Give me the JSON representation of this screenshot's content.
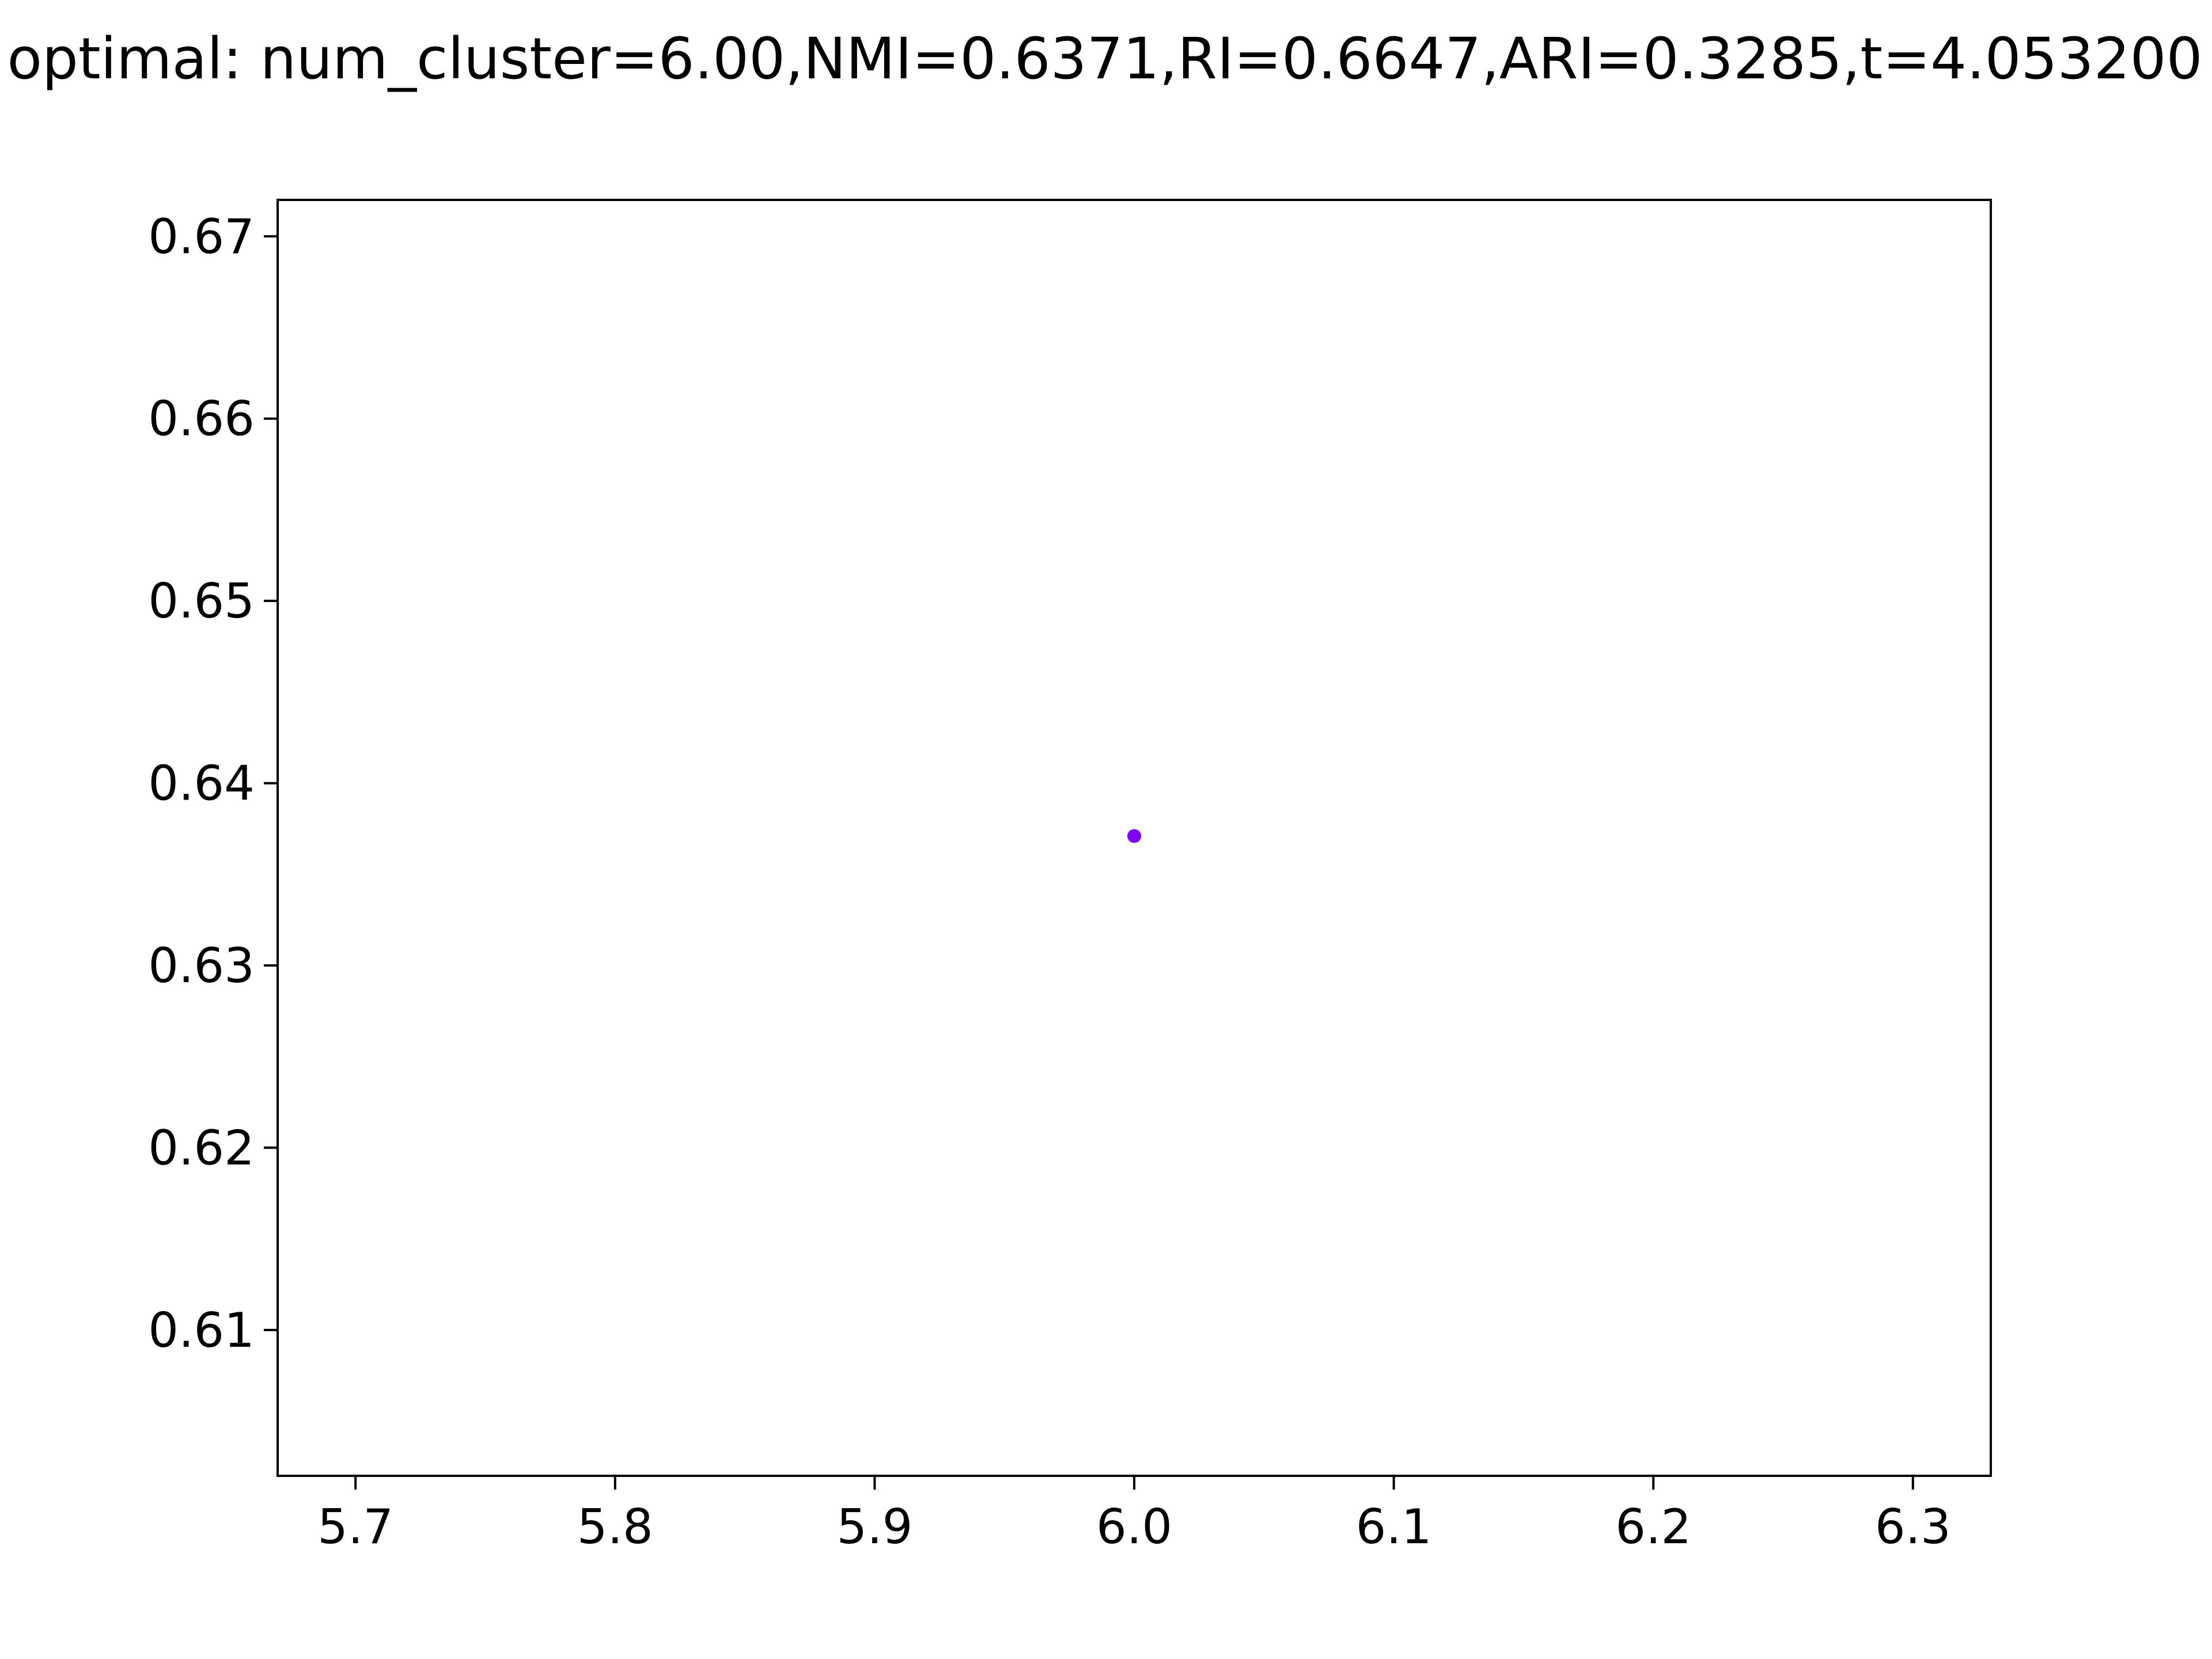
{
  "chart_data": {
    "type": "scatter",
    "title": "optimal: num_cluster=6.00,NMI=0.6371,RI=0.6647,ARI=0.3285,t=4.053200",
    "xlabel": "",
    "ylabel": "",
    "xlim": [
      5.67,
      6.33
    ],
    "ylim": [
      0.602,
      0.672
    ],
    "xticks": [
      5.7,
      5.8,
      5.9,
      6.0,
      6.1,
      6.2,
      6.3
    ],
    "xtick_labels": [
      "5.7",
      "5.8",
      "5.9",
      "6.0",
      "6.1",
      "6.2",
      "6.3"
    ],
    "yticks": [
      0.61,
      0.62,
      0.63,
      0.64,
      0.65,
      0.66,
      0.67
    ],
    "ytick_labels": [
      "0.61",
      "0.62",
      "0.63",
      "0.64",
      "0.65",
      "0.66",
      "0.67"
    ],
    "grid": false,
    "series": [
      {
        "color": "#8000ff",
        "points": [
          {
            "x": 6.0,
            "y": 0.6371
          }
        ]
      }
    ]
  }
}
